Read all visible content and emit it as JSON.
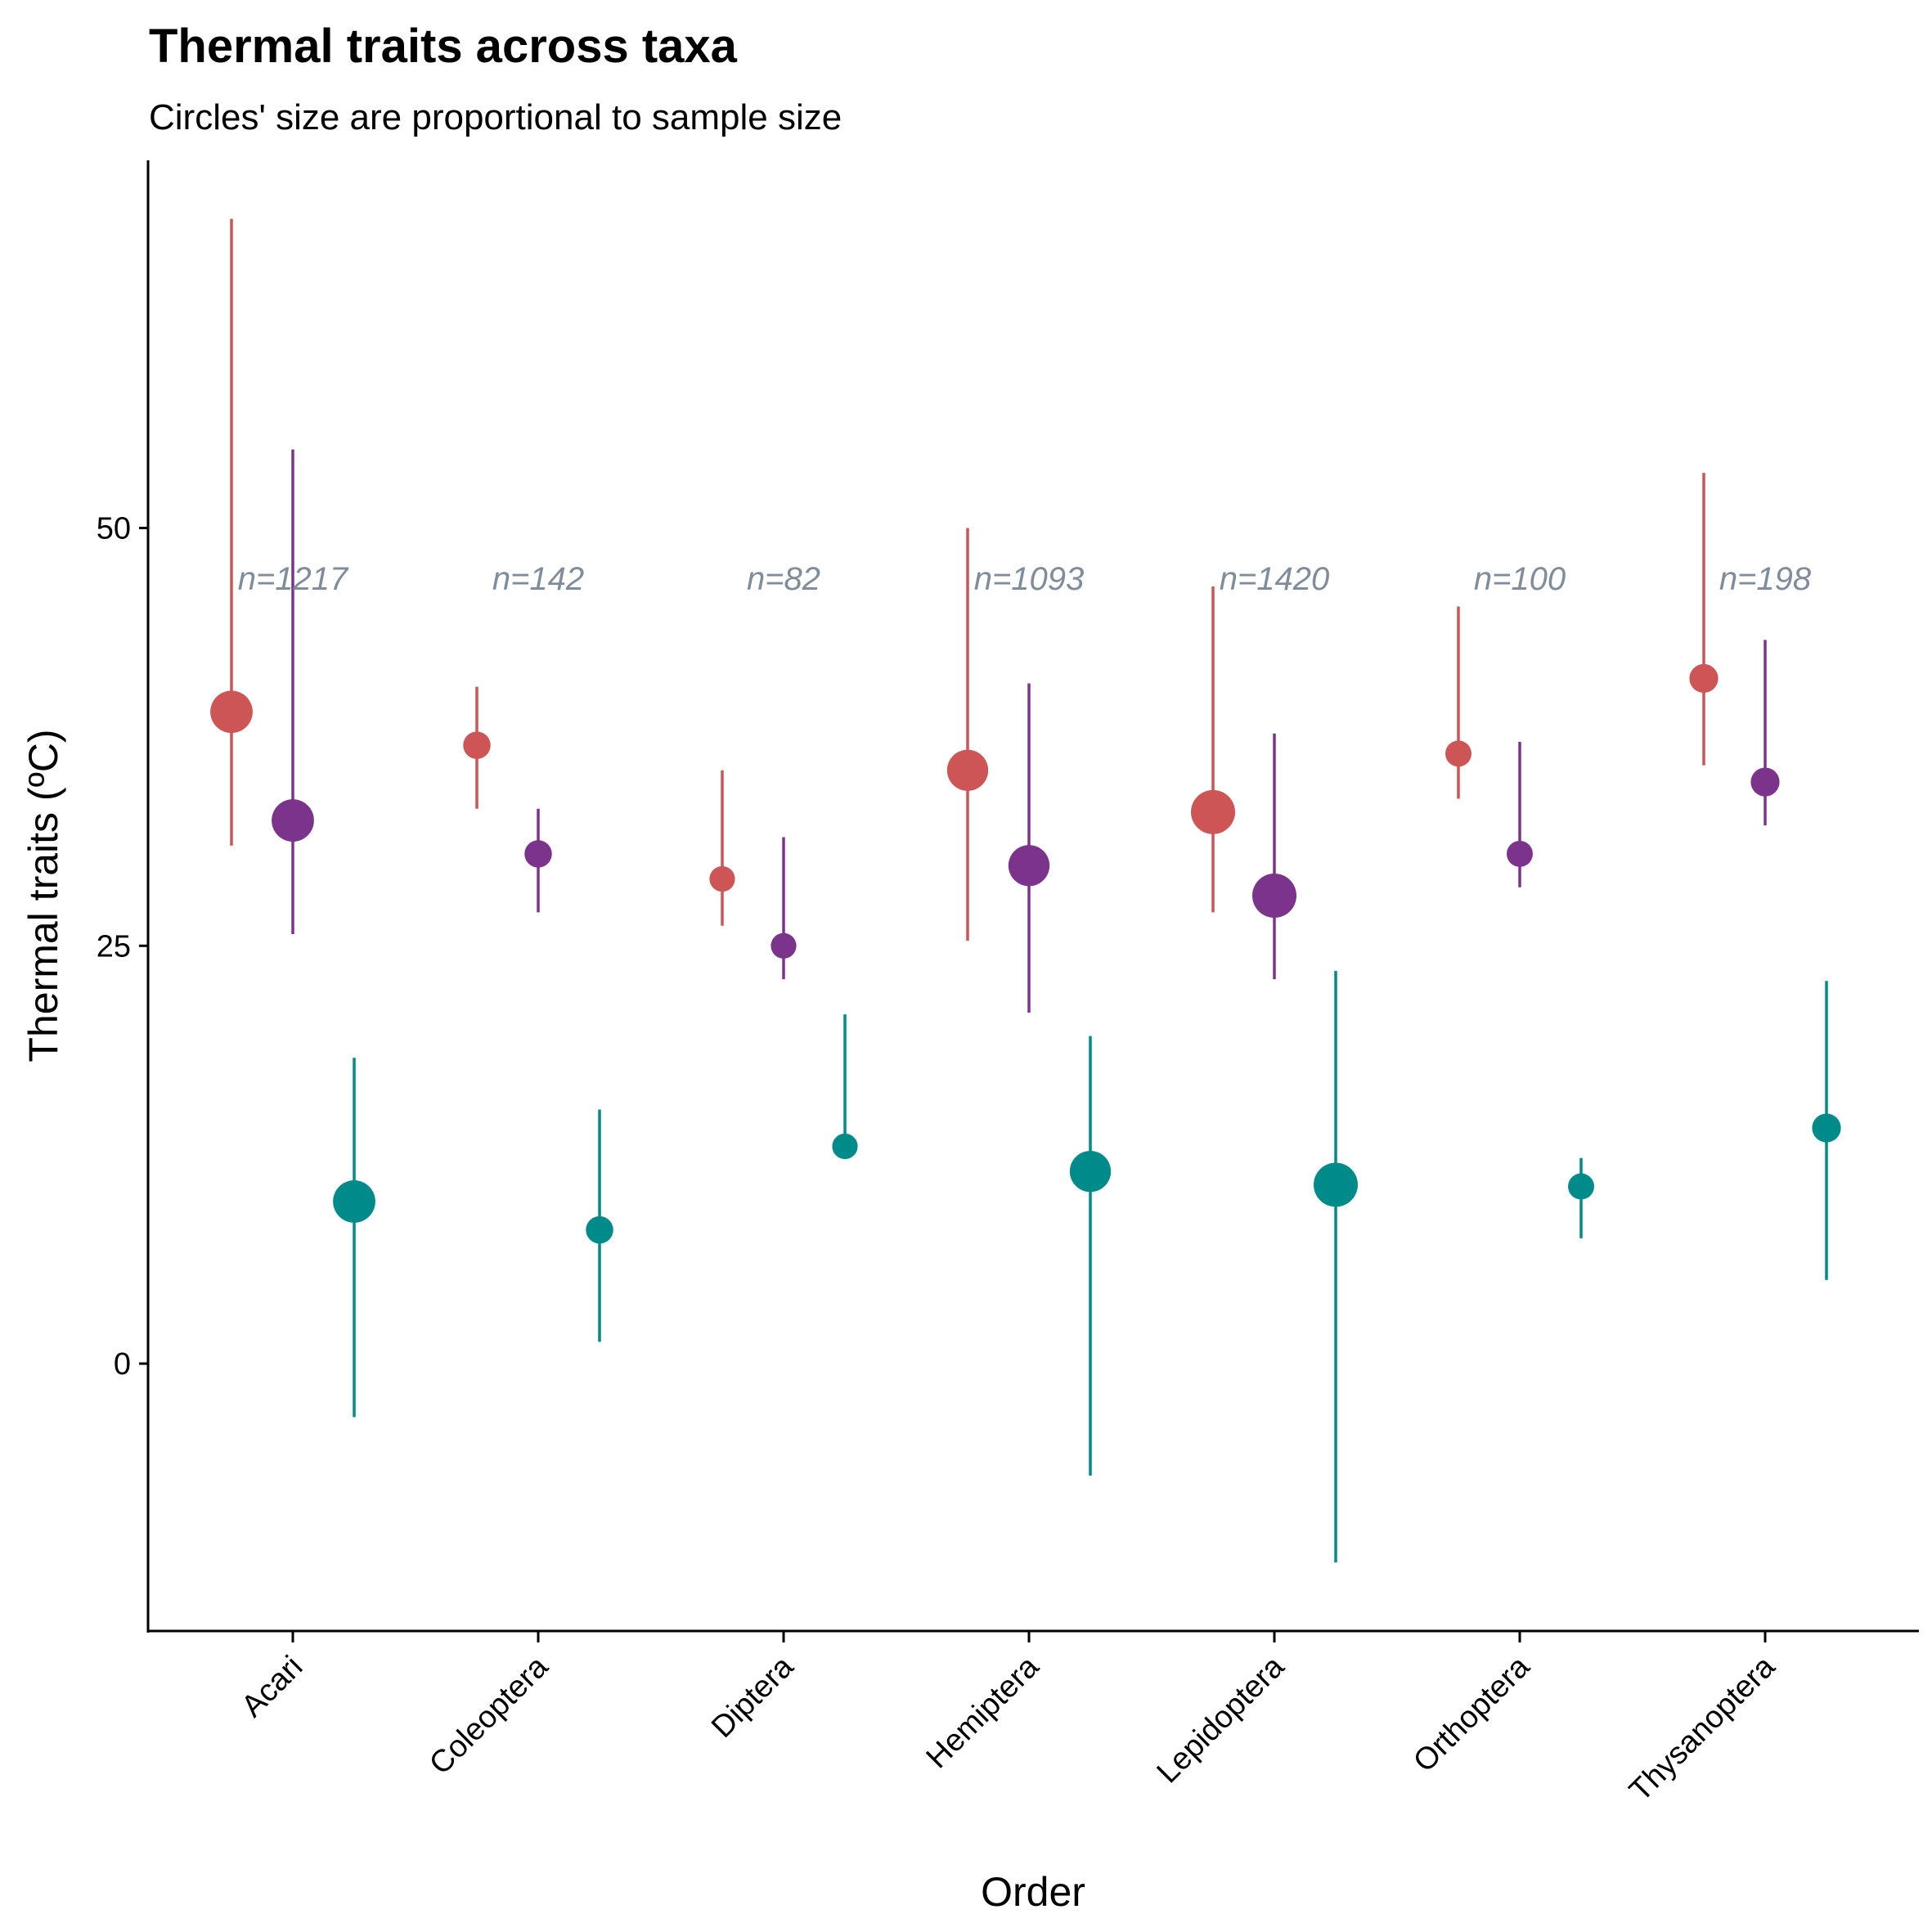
{
  "chart_data": {
    "type": "scatter",
    "title": "Thermal traits across taxa",
    "subtitle": "Circles' size are proportional to sample size",
    "xlabel": "Order",
    "ylabel": "Thermal traits (ºC)",
    "ylim": [
      -16,
      72
    ],
    "yticks": [
      0,
      25,
      50
    ],
    "grid": false,
    "legend": "none",
    "categories": [
      "Acari",
      "Coleoptera",
      "Diptera",
      "Hemiptera",
      "Lepidoptera",
      "Orthoptera",
      "Thysanoptera"
    ],
    "sample_sizes": [
      "n=1217",
      "n=142",
      "n=82",
      "n=1093",
      "n=1420",
      "n=100",
      "n=198"
    ],
    "n_values": [
      1217,
      142,
      82,
      1093,
      1420,
      100,
      198
    ],
    "n_label_y": 47,
    "series": [
      {
        "color": "#cd5555",
        "values": [
          39,
          37,
          29,
          35.5,
          33,
          36.5,
          41
        ],
        "lower": [
          31,
          33.2,
          26.2,
          25.3,
          27,
          33.8,
          35.8
        ],
        "upper": [
          68.5,
          40.5,
          35.5,
          50,
          46.5,
          45.3,
          53.3
        ]
      },
      {
        "color": "#7b338b",
        "values": [
          32.5,
          30.5,
          25,
          29.8,
          28,
          30.5,
          34.8
        ],
        "lower": [
          25.7,
          27,
          23,
          21,
          23,
          28.5,
          32.2
        ],
        "upper": [
          54.7,
          33.2,
          31.5,
          40.7,
          37.7,
          37.2,
          43.3
        ]
      },
      {
        "color": "#008b8b",
        "values": [
          9.7,
          8,
          13,
          11.5,
          10.7,
          10.6,
          14.1
        ],
        "lower": [
          -3.2,
          1.3,
          13,
          -6.7,
          -11.9,
          7.5,
          5
        ],
        "upper": [
          18.3,
          15.2,
          20.9,
          19.6,
          23.5,
          12.3,
          22.9
        ]
      }
    ]
  }
}
